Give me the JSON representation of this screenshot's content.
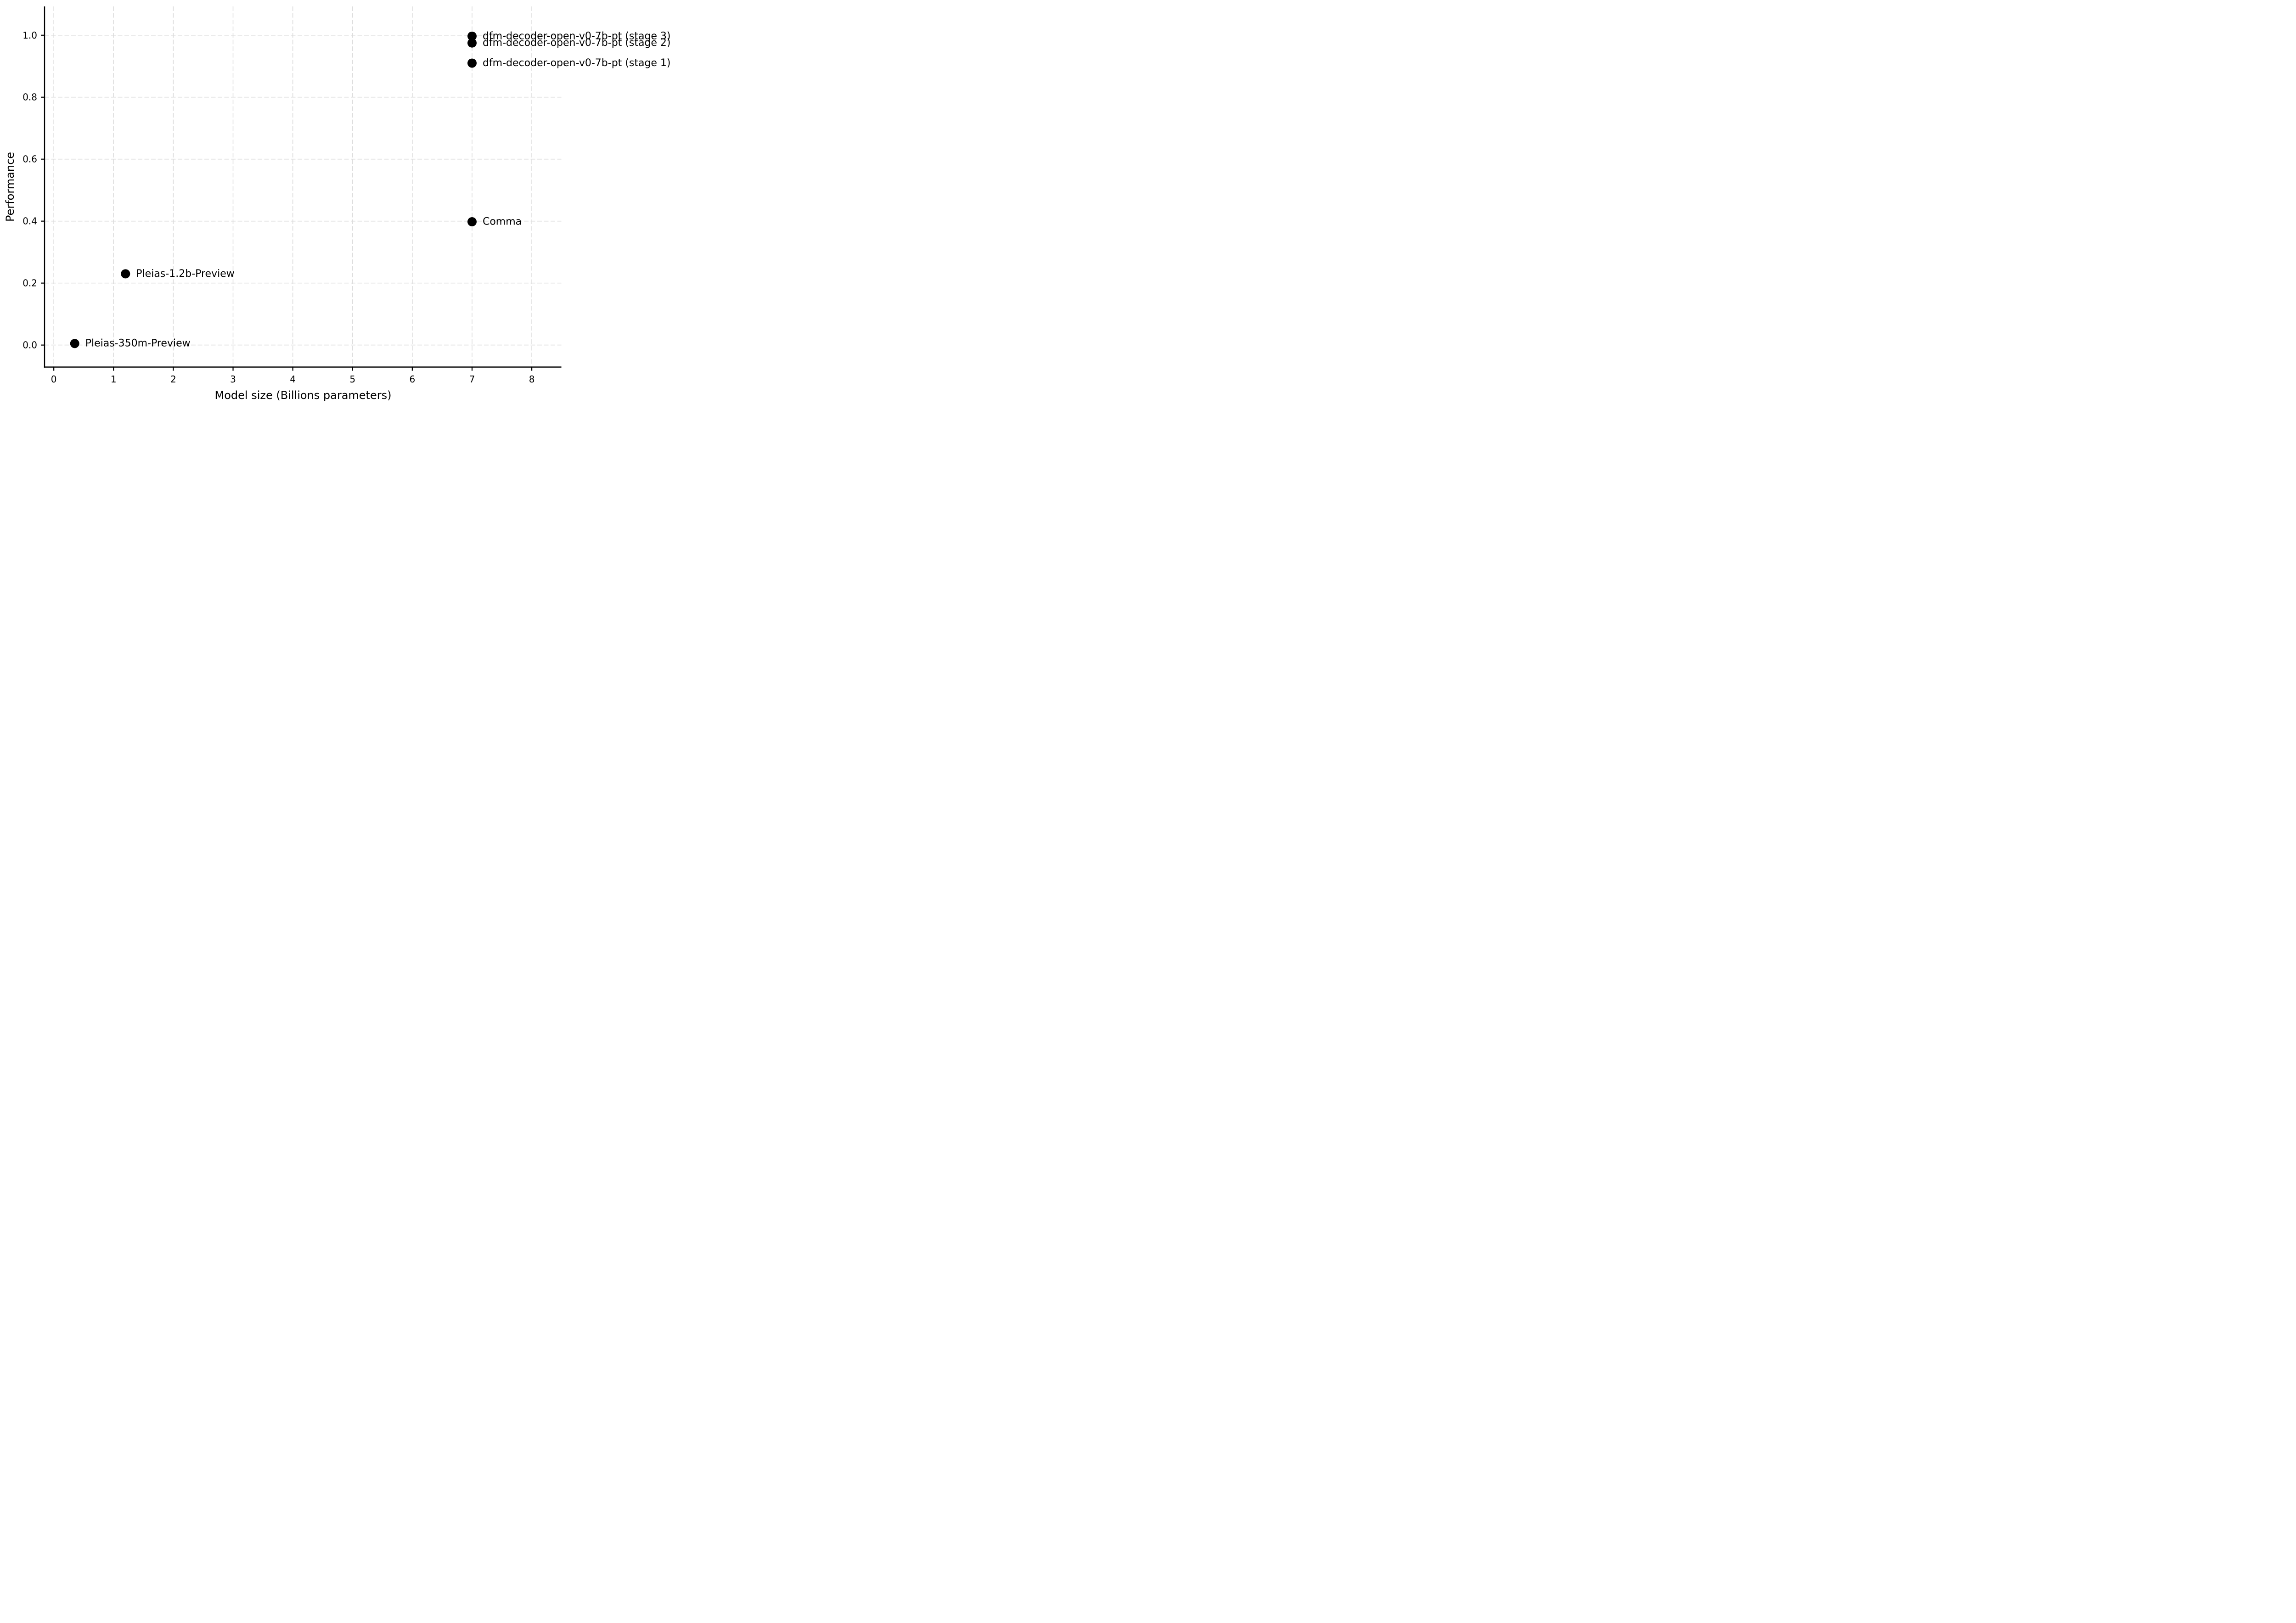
{
  "chart_data": {
    "type": "scatter",
    "title": "",
    "xlabel": "Model size (Billions parameters)",
    "ylabel": "Performance",
    "xlim": [
      -0.155,
      8.495
    ],
    "ylim": [
      -0.071,
      1.093
    ],
    "x_ticks": [
      {
        "value": 0,
        "label": "0"
      },
      {
        "value": 1,
        "label": "1"
      },
      {
        "value": 2,
        "label": "2"
      },
      {
        "value": 3,
        "label": "3"
      },
      {
        "value": 4,
        "label": "4"
      },
      {
        "value": 5,
        "label": "5"
      },
      {
        "value": 6,
        "label": "6"
      },
      {
        "value": 7,
        "label": "7"
      },
      {
        "value": 8,
        "label": "8"
      }
    ],
    "y_ticks": [
      {
        "value": 0.0,
        "label": "0.0"
      },
      {
        "value": 0.2,
        "label": "0.2"
      },
      {
        "value": 0.4,
        "label": "0.4"
      },
      {
        "value": 0.6,
        "label": "0.6"
      },
      {
        "value": 0.8,
        "label": "0.8"
      },
      {
        "value": 1.0,
        "label": "1.0"
      }
    ],
    "grid": {
      "style": "dashed",
      "color": "#dcdcdc"
    },
    "marker": {
      "shape": "circle",
      "color": "#000000"
    },
    "legend_position": "none",
    "points": [
      {
        "label": "Pleias-350m-Preview",
        "x": 0.35,
        "y": 0.005
      },
      {
        "label": "Pleias-1.2b-Preview",
        "x": 1.2,
        "y": 0.23
      },
      {
        "label": "Comma",
        "x": 7.0,
        "y": 0.398
      },
      {
        "label": "dfm-decoder-open-v0-7b-pt (stage 1)",
        "x": 7.0,
        "y": 0.91
      },
      {
        "label": "dfm-decoder-open-v0-7b-pt (stage 2)",
        "x": 7.0,
        "y": 0.975
      },
      {
        "label": "dfm-decoder-open-v0-7b-pt (stage 3)",
        "x": 7.0,
        "y": 0.997
      }
    ]
  }
}
